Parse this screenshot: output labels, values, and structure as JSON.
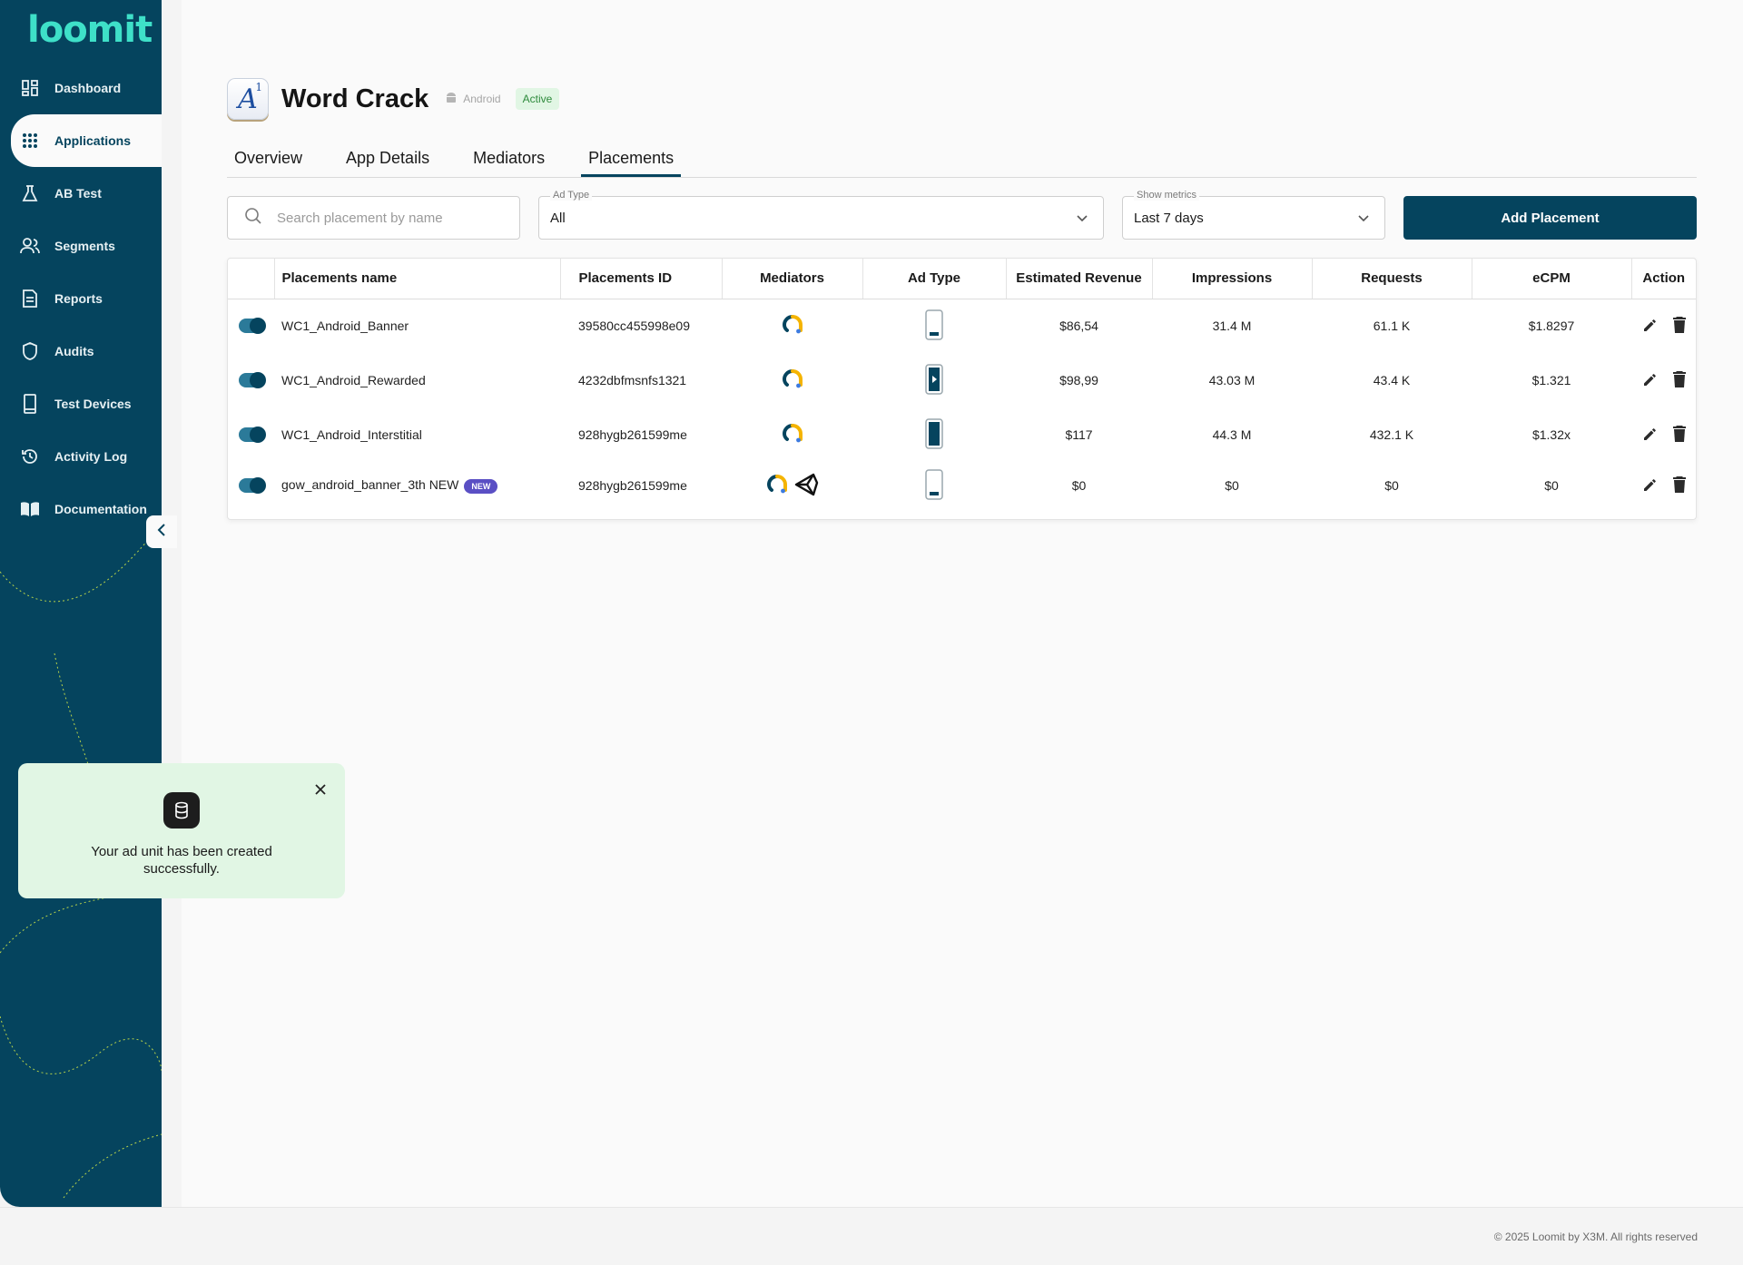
{
  "brand": {
    "logo": "loomit"
  },
  "sidebar": {
    "items": [
      {
        "label": "Dashboard",
        "icon": "dashboard-icon"
      },
      {
        "label": "Applications",
        "icon": "apps-grid-icon",
        "active": true
      },
      {
        "label": "AB Test",
        "icon": "flask-icon"
      },
      {
        "label": "Segments",
        "icon": "users-icon"
      },
      {
        "label": "Reports",
        "icon": "document-icon"
      },
      {
        "label": "Audits",
        "icon": "shield-icon"
      },
      {
        "label": "Test Devices",
        "icon": "phone-icon"
      },
      {
        "label": "Activity Log",
        "icon": "history-icon"
      },
      {
        "label": "Documentation",
        "icon": "book-icon"
      }
    ],
    "collapse_icon": "chevron-left-icon"
  },
  "app": {
    "title": "Word Crack",
    "platform": "Android",
    "status": "Active"
  },
  "tabs": [
    {
      "label": "Overview"
    },
    {
      "label": "App Details"
    },
    {
      "label": "Mediators"
    },
    {
      "label": "Placements",
      "active": true
    }
  ],
  "filters": {
    "search_placeholder": "Search placement by name",
    "ad_type_label": "Ad Type",
    "ad_type_value": "All",
    "metrics_label": "Show metrics",
    "metrics_value": "Last 7 days",
    "add_button": "Add Placement"
  },
  "table": {
    "columns": [
      "Placements name",
      "Placements ID",
      "Mediators",
      "Ad Type",
      "Estimated Revenue",
      "Impressions",
      "Requests",
      "eCPM",
      "Action"
    ],
    "rows": [
      {
        "enabled": true,
        "name": "WC1_Android_Banner",
        "is_new": false,
        "id": "39580cc455998e09",
        "mediators": [
          "admob"
        ],
        "ad_type": "banner",
        "revenue": "$86,54",
        "impressions": "31.4 M",
        "requests": "61.1 K",
        "ecpm": "$1.8297"
      },
      {
        "enabled": true,
        "name": "WC1_Android_Rewarded",
        "is_new": false,
        "id": "4232dbfmsnfs1321",
        "mediators": [
          "admob"
        ],
        "ad_type": "rewarded",
        "revenue": "$98,99",
        "impressions": "43.03 M",
        "requests": "43.4 K",
        "ecpm": "$1.321"
      },
      {
        "enabled": true,
        "name": "WC1_Android_Interstitial",
        "is_new": false,
        "id": "928hygb261599me",
        "mediators": [
          "admob"
        ],
        "ad_type": "interstitial",
        "revenue": "$117",
        "impressions": "44.3 M",
        "requests": "432.1 K",
        "ecpm": "$1.32x"
      },
      {
        "enabled": true,
        "name": "gow_android_banner_3th NEW",
        "is_new": true,
        "new_label": "NEW",
        "id": "928hygb261599me",
        "mediators": [
          "admob",
          "unity"
        ],
        "ad_type": "banner",
        "revenue": "$0",
        "impressions": "$0",
        "requests": "$0",
        "ecpm": "$0"
      }
    ]
  },
  "toast": {
    "message": "Your ad unit has been created successfully.",
    "icon": "database-icon"
  },
  "footer": {
    "text": "© 2025 Loomit by X3M. All rights reserved"
  },
  "colors": {
    "primary": "#05445e",
    "accent": "#3ee0c8",
    "success_bg": "#e1f6e4",
    "new_badge": "#5a4fc4"
  }
}
